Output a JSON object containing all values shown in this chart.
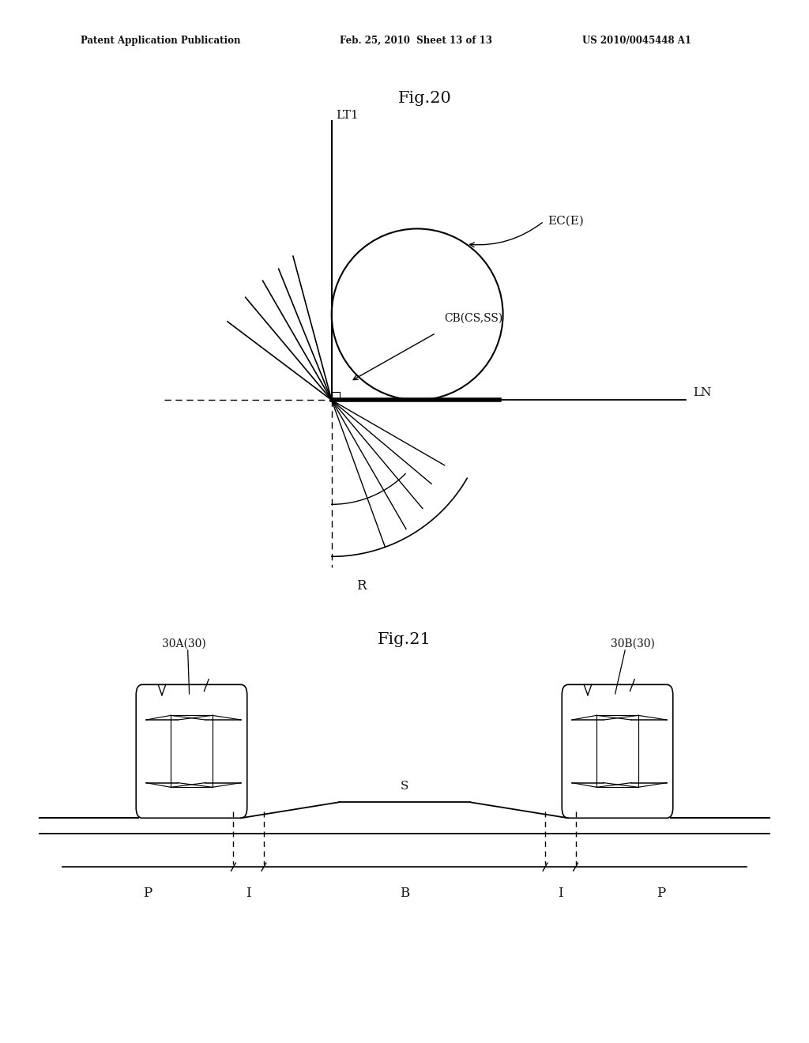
{
  "bg_color": "#ffffff",
  "header_left": "Patent Application Publication",
  "header_mid": "Feb. 25, 2010  Sheet 13 of 13",
  "header_right": "US 2010/0045448 A1",
  "fig20_title": "Fig.20",
  "fig21_title": "Fig.21",
  "fig20_labels": {
    "LT1": "LT1",
    "LN": "LN",
    "EC": "EC(E)",
    "CB": "CB(CS,SS)",
    "R": "R"
  },
  "fig21_labels": {
    "car_left": "30A(30)",
    "car_right": "30B(30)",
    "S": "S",
    "P_left": "P",
    "I_left": "I",
    "B": "B",
    "I_right": "I",
    "P_right": "P"
  }
}
